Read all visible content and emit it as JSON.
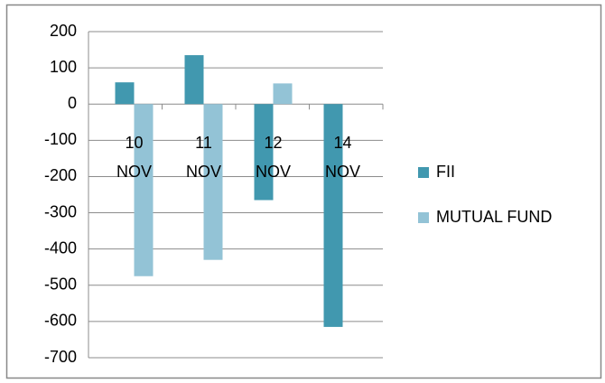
{
  "chart_data": {
    "type": "bar",
    "categories": [
      "10 NOV",
      "11 NOV",
      "12 NOV",
      "14 NOV"
    ],
    "series": [
      {
        "name": "FII",
        "color": "#4198af",
        "values": [
          60,
          135,
          -265,
          -615
        ]
      },
      {
        "name": "MUTUAL FUND",
        "color": "#93c3d6",
        "values": [
          -475,
          -430,
          57,
          null
        ]
      }
    ],
    "ylim": [
      -700,
      200
    ],
    "yticks": [
      -700,
      -600,
      -500,
      -400,
      -300,
      -200,
      -100,
      0,
      100,
      200
    ],
    "grid": true,
    "legend": "right"
  }
}
